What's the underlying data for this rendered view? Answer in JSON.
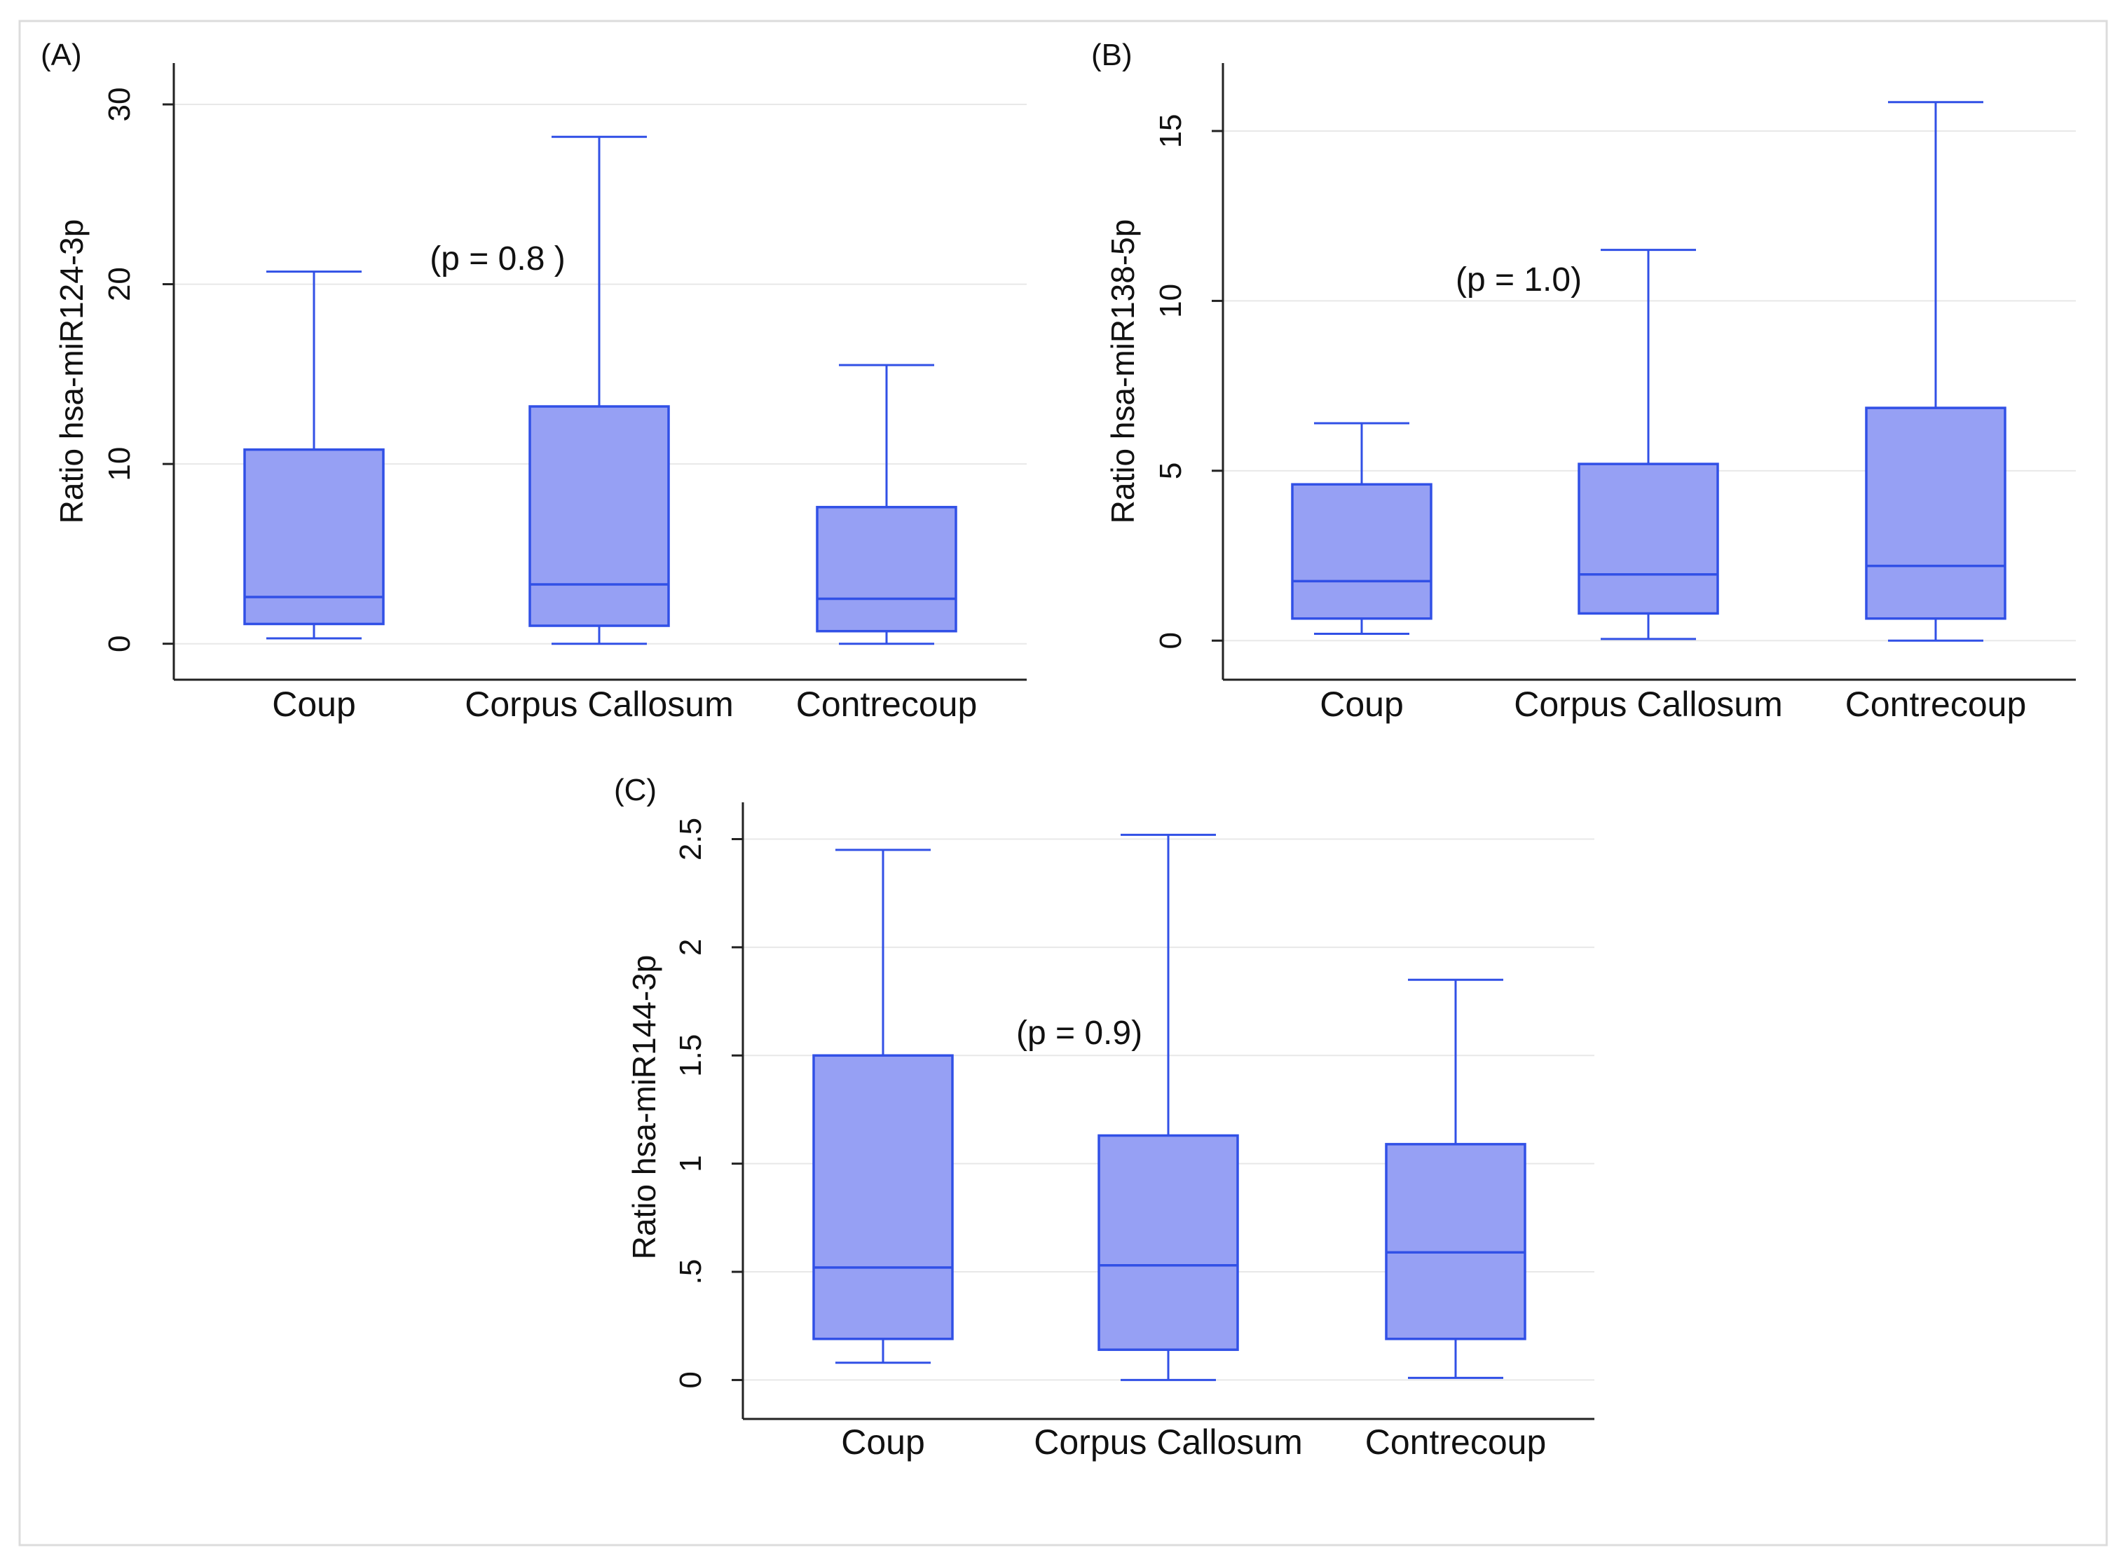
{
  "figure": {
    "colors": {
      "box_fill": "#96a0f4",
      "box_stroke": "#3150e6",
      "grid": "#e8e8e8",
      "axis": "#222222",
      "text": "#111111",
      "border": "#dcdcdc"
    }
  },
  "chart_data": [
    {
      "type": "boxplot",
      "panel_label": "(A)",
      "ylabel": "Ratio hsa-miR124-3p",
      "annotation": "(p = 0.8 )",
      "categories": [
        "Coup",
        "Corpus Callosum",
        "Contrecoup"
      ],
      "yticks": [
        0,
        10,
        20,
        30
      ],
      "ytick_labels": [
        "0",
        "10",
        "20",
        "30"
      ],
      "ylim": [
        -2,
        32.3
      ],
      "grid": true,
      "boxes": [
        {
          "category": "Coup",
          "min": 0.3,
          "q1": 1.1,
          "median": 2.6,
          "q3": 10.8,
          "max": 20.7
        },
        {
          "category": "Corpus Callosum",
          "min": 0.0,
          "q1": 1.0,
          "median": 3.3,
          "q3": 13.2,
          "max": 28.2
        },
        {
          "category": "Contrecoup",
          "min": 0.0,
          "q1": 0.7,
          "median": 2.5,
          "q3": 7.6,
          "max": 15.5
        }
      ]
    },
    {
      "type": "boxplot",
      "panel_label": "(B)",
      "ylabel": "Ratio hsa-miR138-5p",
      "annotation": "(p = 1.0)",
      "categories": [
        "Coup",
        "Corpus Callosum",
        "Contrecoup"
      ],
      "yticks": [
        0,
        5,
        10,
        15
      ],
      "ytick_labels": [
        "0",
        "5",
        "10",
        "15"
      ],
      "ylim": [
        -1.15,
        17.0
      ],
      "grid": true,
      "boxes": [
        {
          "category": "Coup",
          "min": 0.2,
          "q1": 0.65,
          "median": 1.75,
          "q3": 4.6,
          "max": 6.4
        },
        {
          "category": "Corpus Callosum",
          "min": 0.05,
          "q1": 0.8,
          "median": 1.95,
          "q3": 5.2,
          "max": 11.5
        },
        {
          "category": "Contrecoup",
          "min": 0.0,
          "q1": 0.65,
          "median": 2.2,
          "q3": 6.85,
          "max": 15.85
        }
      ]
    },
    {
      "type": "boxplot",
      "panel_label": "(C)",
      "ylabel": "Ratio hsa-miR144-3p",
      "annotation": "(p = 0.9)",
      "categories": [
        "Coup",
        "Corpus Callosum",
        "Contrecoup"
      ],
      "yticks": [
        0,
        0.5,
        1,
        1.5,
        2,
        2.5
      ],
      "ytick_labels": [
        "0",
        ".5",
        "1",
        "1.5",
        "2",
        "2.5"
      ],
      "ylim": [
        -0.18,
        2.67
      ],
      "grid": true,
      "boxes": [
        {
          "category": "Coup",
          "min": 0.08,
          "q1": 0.19,
          "median": 0.52,
          "q3": 1.5,
          "max": 2.45
        },
        {
          "category": "Corpus Callosum",
          "min": 0.0,
          "q1": 0.14,
          "median": 0.53,
          "q3": 1.13,
          "max": 2.52
        },
        {
          "category": "Contrecoup",
          "min": 0.01,
          "q1": 0.19,
          "median": 0.59,
          "q3": 1.09,
          "max": 1.85
        }
      ]
    }
  ]
}
